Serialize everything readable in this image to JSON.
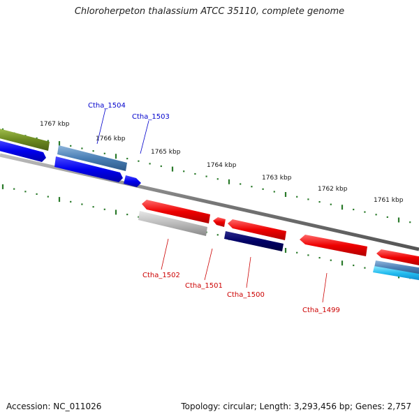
{
  "title": "Chloroherpeton thalassium ATCC 35110, complete genome",
  "footer": {
    "accession": "Accession: NC_011026",
    "topology": "Topology: circular; Length: 3,293,456 bp; Genes: 2,757"
  },
  "colors": {
    "backbone": "#7a7a7a",
    "tick": "#2a7a2a",
    "forward_label": "#0000cc",
    "reverse_label": "#cc0000"
  },
  "kbp_labels": [
    "1767 kbp",
    "1766 kbp",
    "1765 kbp",
    "1764 kbp",
    "1763 kbp",
    "1762 kbp",
    "1761 kbp"
  ],
  "gene_labels": {
    "forward": [
      "Ctha_1504",
      "Ctha_1503"
    ],
    "reverse": [
      "Ctha_1502",
      "Ctha_1501",
      "Ctha_1500",
      "Ctha_1499"
    ]
  }
}
